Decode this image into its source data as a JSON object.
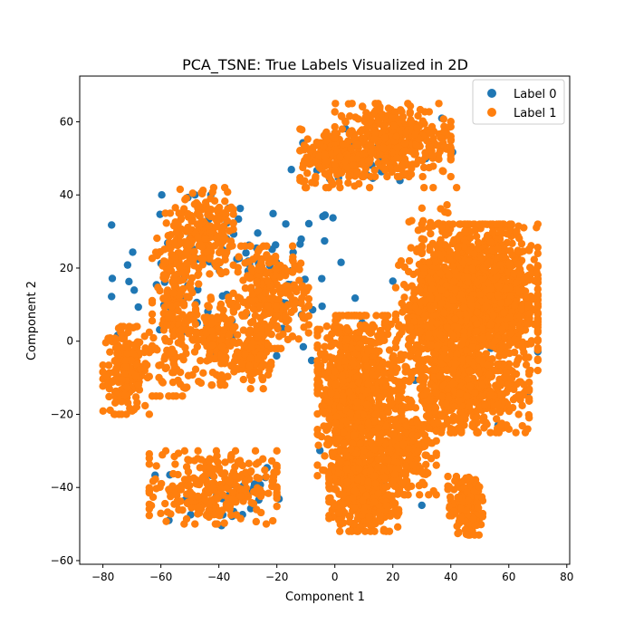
{
  "chart_data": {
    "type": "scatter",
    "title": "PCA_TSNE: True Labels Visualized in 2D",
    "xlabel": "Component 1",
    "ylabel": "Component 2",
    "xlim": [
      -88,
      81
    ],
    "ylim": [
      -61,
      72.5
    ],
    "xticks": [
      -80,
      -60,
      -40,
      -20,
      0,
      20,
      40,
      60,
      80
    ],
    "yticks": [
      -60,
      -40,
      -20,
      0,
      20,
      40,
      60
    ],
    "legend_position": "top-right",
    "grid": false,
    "series": [
      {
        "name": "Label 0",
        "color": "#1f77b4"
      },
      {
        "name": "Label 1",
        "color": "#ff7f0e"
      }
    ],
    "clusters": [
      {
        "label": 0,
        "cx": -35,
        "cy": 18,
        "rx": 42,
        "ry": 22,
        "n": 110
      },
      {
        "label": 0,
        "cx": -40,
        "cy": -42,
        "rx": 22,
        "ry": 10,
        "n": 35
      },
      {
        "label": 0,
        "cx": 15,
        "cy": 52,
        "rx": 30,
        "ry": 12,
        "n": 30
      },
      {
        "label": 0,
        "cx": 45,
        "cy": 2,
        "rx": 25,
        "ry": 25,
        "n": 20
      },
      {
        "label": 0,
        "cx": 10,
        "cy": -20,
        "rx": 20,
        "ry": 25,
        "n": 15
      },
      {
        "label": 1,
        "cx": -72,
        "cy": -8,
        "rx": 8,
        "ry": 12,
        "n": 200
      },
      {
        "label": 1,
        "cx": -55,
        "cy": 10,
        "rx": 8,
        "ry": 25,
        "n": 250
      },
      {
        "label": 1,
        "cx": -45,
        "cy": 30,
        "rx": 10,
        "ry": 12,
        "n": 180
      },
      {
        "label": 1,
        "cx": -40,
        "cy": 0,
        "rx": 8,
        "ry": 12,
        "n": 150
      },
      {
        "label": 1,
        "cx": -22,
        "cy": 12,
        "rx": 13,
        "ry": 14,
        "n": 260
      },
      {
        "label": 1,
        "cx": -28,
        "cy": -5,
        "rx": 6,
        "ry": 8,
        "n": 100
      },
      {
        "label": 1,
        "cx": -42,
        "cy": -40,
        "rx": 22,
        "ry": 10,
        "n": 280
      },
      {
        "label": 1,
        "cx": 0,
        "cy": 50,
        "rx": 12,
        "ry": 8,
        "n": 200
      },
      {
        "label": 1,
        "cx": 20,
        "cy": 55,
        "rx": 20,
        "ry": 10,
        "n": 380
      },
      {
        "label": 1,
        "cx": 50,
        "cy": 12,
        "rx": 20,
        "ry": 20,
        "n": 1400
      },
      {
        "label": 1,
        "cx": 35,
        "cy": 5,
        "rx": 14,
        "ry": 16,
        "n": 350
      },
      {
        "label": 1,
        "cx": 45,
        "cy": -15,
        "rx": 22,
        "ry": 10,
        "n": 450
      },
      {
        "label": 1,
        "cx": 8,
        "cy": -15,
        "rx": 14,
        "ry": 22,
        "n": 900
      },
      {
        "label": 1,
        "cx": 10,
        "cy": -40,
        "rx": 12,
        "ry": 12,
        "n": 500
      },
      {
        "label": 1,
        "cx": 25,
        "cy": -30,
        "rx": 10,
        "ry": 12,
        "n": 200
      },
      {
        "label": 1,
        "cx": 45,
        "cy": -45,
        "rx": 6,
        "ry": 8,
        "n": 150
      },
      {
        "label": 1,
        "cx": 32,
        "cy": 28,
        "rx": 10,
        "ry": 14,
        "n": 45
      }
    ]
  }
}
